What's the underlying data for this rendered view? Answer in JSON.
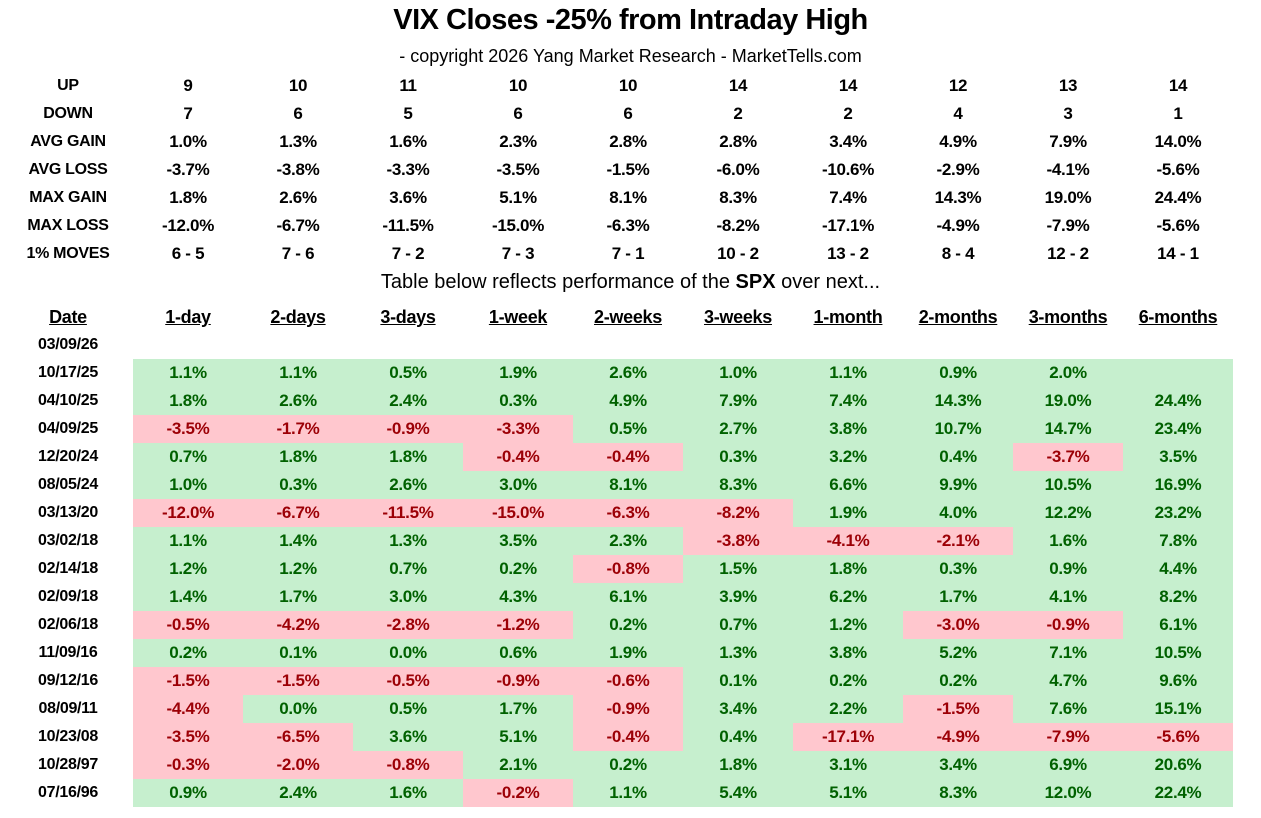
{
  "title": "VIX Closes -25% from Intraday High",
  "subtitle": "- copyright 2026 Yang Market Research - MarketTells.com",
  "colors": {
    "positive_bg": "#c6efce",
    "positive_text": "#006100",
    "negative_bg": "#ffc7ce",
    "negative_text": "#9c0006"
  },
  "stats": [
    {
      "label": "UP",
      "values": [
        "9",
        "10",
        "11",
        "10",
        "10",
        "14",
        "14",
        "12",
        "13",
        "14"
      ]
    },
    {
      "label": "DOWN",
      "values": [
        "7",
        "6",
        "5",
        "6",
        "6",
        "2",
        "2",
        "4",
        "3",
        "1"
      ]
    },
    {
      "label": "AVG GAIN",
      "values": [
        "1.0%",
        "1.3%",
        "1.6%",
        "2.3%",
        "2.8%",
        "2.8%",
        "3.4%",
        "4.9%",
        "7.9%",
        "14.0%"
      ]
    },
    {
      "label": "AVG LOSS",
      "values": [
        "-3.7%",
        "-3.8%",
        "-3.3%",
        "-3.5%",
        "-1.5%",
        "-6.0%",
        "-10.6%",
        "-2.9%",
        "-4.1%",
        "-5.6%"
      ]
    },
    {
      "label": "MAX GAIN",
      "values": [
        "1.8%",
        "2.6%",
        "3.6%",
        "5.1%",
        "8.1%",
        "8.3%",
        "7.4%",
        "14.3%",
        "19.0%",
        "24.4%"
      ]
    },
    {
      "label": "MAX LOSS",
      "values": [
        "-12.0%",
        "-6.7%",
        "-11.5%",
        "-15.0%",
        "-6.3%",
        "-8.2%",
        "-17.1%",
        "-4.9%",
        "-7.9%",
        "-5.6%"
      ]
    },
    {
      "label": "1% MOVES",
      "values": [
        "6 - 5",
        "7 - 6",
        "7 - 2",
        "7 - 3",
        "7 - 1",
        "10 - 2",
        "13 - 2",
        "8 - 4",
        "12 - 2",
        "14 - 1"
      ]
    }
  ],
  "note": {
    "before": "Table below reflects performance of the ",
    "bold": "SPX",
    "after": " over next..."
  },
  "table": {
    "date_header": "Date",
    "columns": [
      "1-day",
      "2-days",
      "3-days",
      "1-week",
      "2-weeks",
      "3-weeks",
      "1-month",
      "2-months",
      "3-months",
      "6-months"
    ],
    "rows": [
      {
        "date": "03/09/26",
        "values": [
          "",
          "",
          "",
          "",
          "",
          "",
          "",
          "",
          "",
          ""
        ]
      },
      {
        "date": "10/17/25",
        "values": [
          "1.1%",
          "1.1%",
          "0.5%",
          "1.9%",
          "2.6%",
          "1.0%",
          "1.1%",
          "0.9%",
          "2.0%",
          ""
        ]
      },
      {
        "date": "04/10/25",
        "values": [
          "1.8%",
          "2.6%",
          "2.4%",
          "0.3%",
          "4.9%",
          "7.9%",
          "7.4%",
          "14.3%",
          "19.0%",
          "24.4%"
        ]
      },
      {
        "date": "04/09/25",
        "values": [
          "-3.5%",
          "-1.7%",
          "-0.9%",
          "-3.3%",
          "0.5%",
          "2.7%",
          "3.8%",
          "10.7%",
          "14.7%",
          "23.4%"
        ]
      },
      {
        "date": "12/20/24",
        "values": [
          "0.7%",
          "1.8%",
          "1.8%",
          "-0.4%",
          "-0.4%",
          "0.3%",
          "3.2%",
          "0.4%",
          "-3.7%",
          "3.5%"
        ]
      },
      {
        "date": "08/05/24",
        "values": [
          "1.0%",
          "0.3%",
          "2.6%",
          "3.0%",
          "8.1%",
          "8.3%",
          "6.6%",
          "9.9%",
          "10.5%",
          "16.9%"
        ]
      },
      {
        "date": "03/13/20",
        "values": [
          "-12.0%",
          "-6.7%",
          "-11.5%",
          "-15.0%",
          "-6.3%",
          "-8.2%",
          "1.9%",
          "4.0%",
          "12.2%",
          "23.2%"
        ]
      },
      {
        "date": "03/02/18",
        "values": [
          "1.1%",
          "1.4%",
          "1.3%",
          "3.5%",
          "2.3%",
          "-3.8%",
          "-4.1%",
          "-2.1%",
          "1.6%",
          "7.8%"
        ]
      },
      {
        "date": "02/14/18",
        "values": [
          "1.2%",
          "1.2%",
          "0.7%",
          "0.2%",
          "-0.8%",
          "1.5%",
          "1.8%",
          "0.3%",
          "0.9%",
          "4.4%"
        ]
      },
      {
        "date": "02/09/18",
        "values": [
          "1.4%",
          "1.7%",
          "3.0%",
          "4.3%",
          "6.1%",
          "3.9%",
          "6.2%",
          "1.7%",
          "4.1%",
          "8.2%"
        ]
      },
      {
        "date": "02/06/18",
        "values": [
          "-0.5%",
          "-4.2%",
          "-2.8%",
          "-1.2%",
          "0.2%",
          "0.7%",
          "1.2%",
          "-3.0%",
          "-0.9%",
          "6.1%"
        ]
      },
      {
        "date": "11/09/16",
        "values": [
          "0.2%",
          "0.1%",
          "0.0%",
          "0.6%",
          "1.9%",
          "1.3%",
          "3.8%",
          "5.2%",
          "7.1%",
          "10.5%"
        ]
      },
      {
        "date": "09/12/16",
        "values": [
          "-1.5%",
          "-1.5%",
          "-0.5%",
          "-0.9%",
          "-0.6%",
          "0.1%",
          "0.2%",
          "0.2%",
          "4.7%",
          "9.6%"
        ]
      },
      {
        "date": "08/09/11",
        "values": [
          "-4.4%",
          "0.0%",
          "0.5%",
          "1.7%",
          "-0.9%",
          "3.4%",
          "2.2%",
          "-1.5%",
          "7.6%",
          "15.1%"
        ]
      },
      {
        "date": "10/23/08",
        "values": [
          "-3.5%",
          "-6.5%",
          "3.6%",
          "5.1%",
          "-0.4%",
          "0.4%",
          "-17.1%",
          "-4.9%",
          "-7.9%",
          "-5.6%"
        ]
      },
      {
        "date": "10/28/97",
        "values": [
          "-0.3%",
          "-2.0%",
          "-0.8%",
          "2.1%",
          "0.2%",
          "1.8%",
          "3.1%",
          "3.4%",
          "6.9%",
          "20.6%"
        ]
      },
      {
        "date": "07/16/96",
        "values": [
          "0.9%",
          "2.4%",
          "1.6%",
          "-0.2%",
          "1.1%",
          "5.4%",
          "5.1%",
          "8.3%",
          "12.0%",
          "22.4%"
        ]
      }
    ]
  }
}
